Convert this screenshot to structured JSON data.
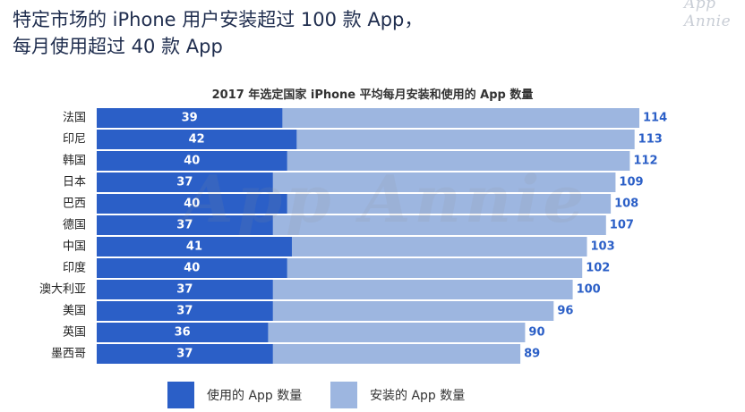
{
  "headline": {
    "line1": "特定市场的 iPhone 用户安装超过 100 款 App，",
    "line2": "每月使用超过 40 款 App"
  },
  "watermark": "App Annie",
  "chart_data": {
    "type": "bar",
    "orientation": "horizontal",
    "title": "2017 年选定国家 iPhone 平均每月安装和使用的 App 数量",
    "categories": [
      "法国",
      "印尼",
      "韩国",
      "日本",
      "巴西",
      "德国",
      "中国",
      "印度",
      "澳大利亚",
      "美国",
      "英国",
      "墨西哥"
    ],
    "series": [
      {
        "name": "使用的 App 数量",
        "values": [
          39,
          42,
          40,
          37,
          40,
          37,
          41,
          40,
          37,
          37,
          36,
          37
        ],
        "color": "#2b5fc7"
      },
      {
        "name": "安装的 App 数量",
        "values": [
          114,
          113,
          112,
          109,
          108,
          107,
          103,
          102,
          100,
          96,
          90,
          89
        ],
        "color": "#9db6e0"
      }
    ],
    "label_colors": {
      "used": "#ffffff",
      "installed": "#2b5fc7"
    },
    "xlim": [
      0,
      114
    ],
    "grid": false,
    "legend_position": "bottom"
  }
}
